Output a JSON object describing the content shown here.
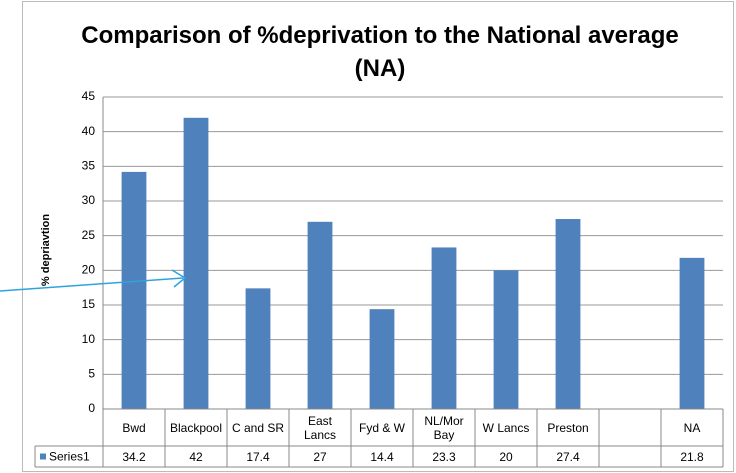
{
  "chart_data": {
    "type": "bar",
    "title": "Comparison of %deprivation to the National average\n(NA)",
    "y_label": "% depriavtion",
    "categories": [
      "Bwd",
      "Blackpool",
      "C and SR",
      "East\nLancs",
      "Fyd & W",
      "NL/Mor\nBay",
      "W Lancs",
      "Preston",
      null,
      "NA"
    ],
    "series": [
      {
        "name": "Series1",
        "color": "#4f81bd",
        "values": [
          34.2,
          42,
          17.4,
          27,
          14.4,
          23.3,
          20,
          27.4,
          null,
          21.8
        ]
      }
    ],
    "ylim": [
      0,
      45
    ],
    "yticks": [
      0,
      5,
      10,
      15,
      20,
      25,
      30,
      35,
      40,
      45
    ],
    "grid": true
  }
}
